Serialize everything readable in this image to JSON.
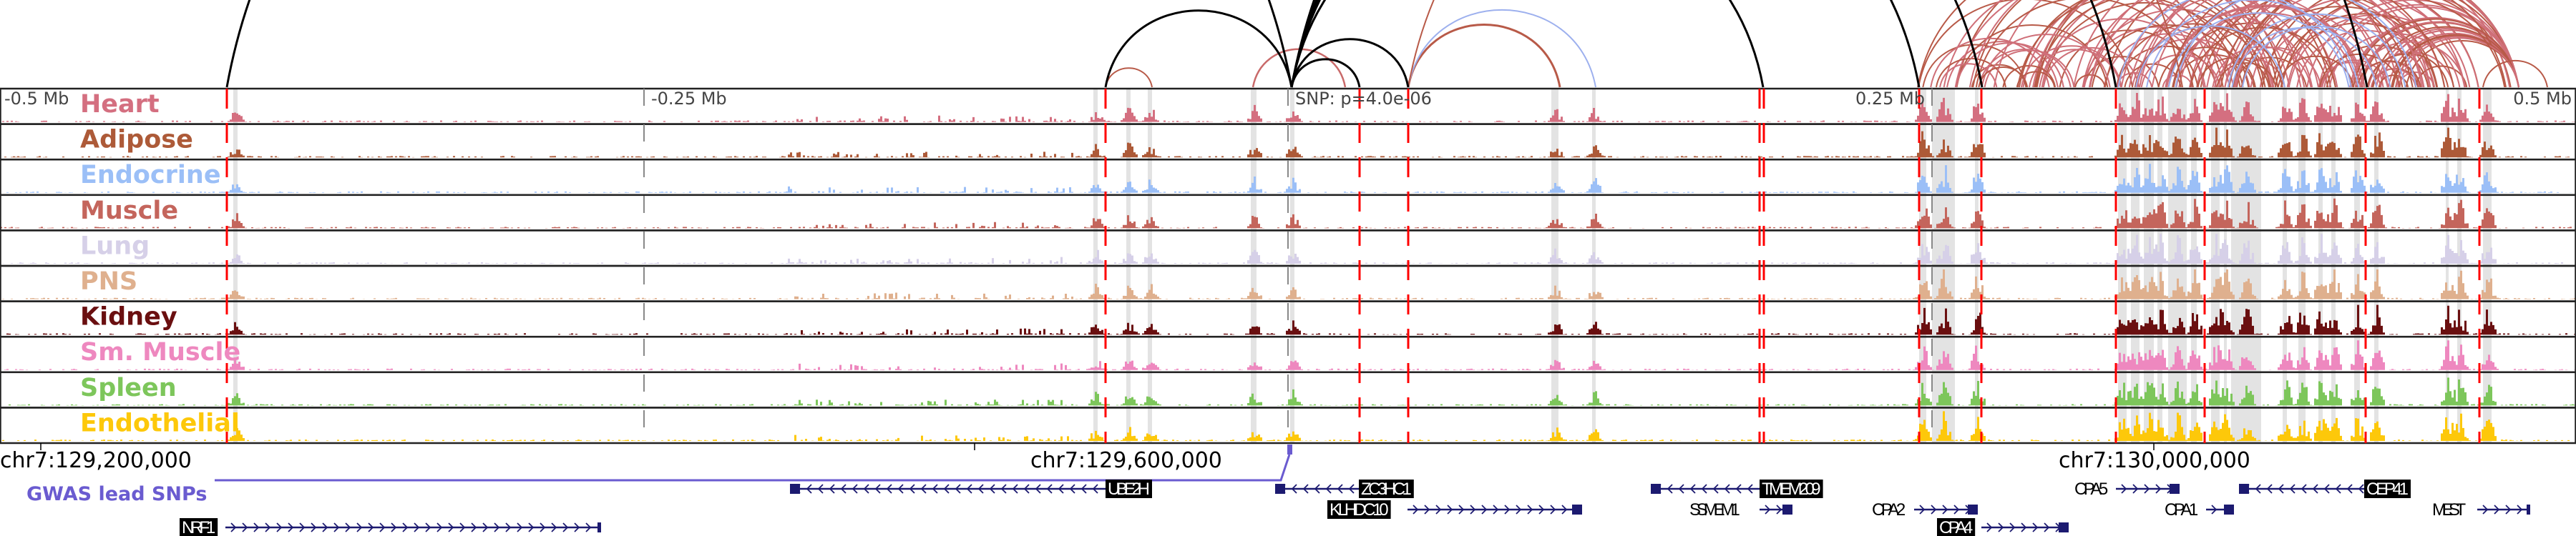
{
  "axis": {
    "labels": [
      "-0.5 Mb",
      "-0.25 Mb",
      "0.25 Mb",
      "0.5 Mb"
    ],
    "snp_label": "SNP: p=4.0e-06"
  },
  "tracks": [
    {
      "name": "Heart",
      "color": "#d46f80"
    },
    {
      "name": "Adipose",
      "color": "#ad5a38"
    },
    {
      "name": "Endocrine",
      "color": "#9bbff7"
    },
    {
      "name": "Muscle",
      "color": "#c4655c"
    },
    {
      "name": "Lung",
      "color": "#d6d0e8"
    },
    {
      "name": "PNS",
      "color": "#dfb08e"
    },
    {
      "name": "Kidney",
      "color": "#6a0f10"
    },
    {
      "name": "Sm. Muscle",
      "color": "#ee88bf"
    },
    {
      "name": "Spleen",
      "color": "#7dc65b"
    },
    {
      "name": "Endothelial",
      "color": "#fdc80a"
    }
  ],
  "coords": [
    "chr7:129,200,000",
    "chr7:129,600,000",
    "chr7:130,000,000"
  ],
  "gwas": {
    "label": "GWAS lead SNPs",
    "color": "#6a5bd0"
  },
  "genes": [
    {
      "name": "NRF1",
      "strand": "+",
      "highlighted": true
    },
    {
      "name": "UBE2H",
      "strand": "-",
      "highlighted": true
    },
    {
      "name": "ZC3HC1",
      "strand": "-",
      "highlighted": true
    },
    {
      "name": "KLHDC10",
      "strand": "+",
      "highlighted": true
    },
    {
      "name": "TMEM209",
      "strand": "-",
      "highlighted": true
    },
    {
      "name": "SSMEM1",
      "strand": "+",
      "highlighted": false
    },
    {
      "name": "CPA2",
      "strand": "+",
      "highlighted": false
    },
    {
      "name": "CPA4",
      "strand": "+",
      "highlighted": true
    },
    {
      "name": "CPA5",
      "strand": "+",
      "highlighted": false
    },
    {
      "name": "CEP41",
      "strand": "-",
      "highlighted": true
    },
    {
      "name": "CPA1",
      "strand": "+",
      "highlighted": false
    },
    {
      "name": "MEST",
      "strand": "+",
      "highlighted": false
    }
  ],
  "colors": {
    "enhancer_marker": "#ff0000",
    "gene": "#1c1a70",
    "loop_black": "#000000",
    "loop_red": "#b85a48",
    "loop_blue": "#9db0ee"
  }
}
